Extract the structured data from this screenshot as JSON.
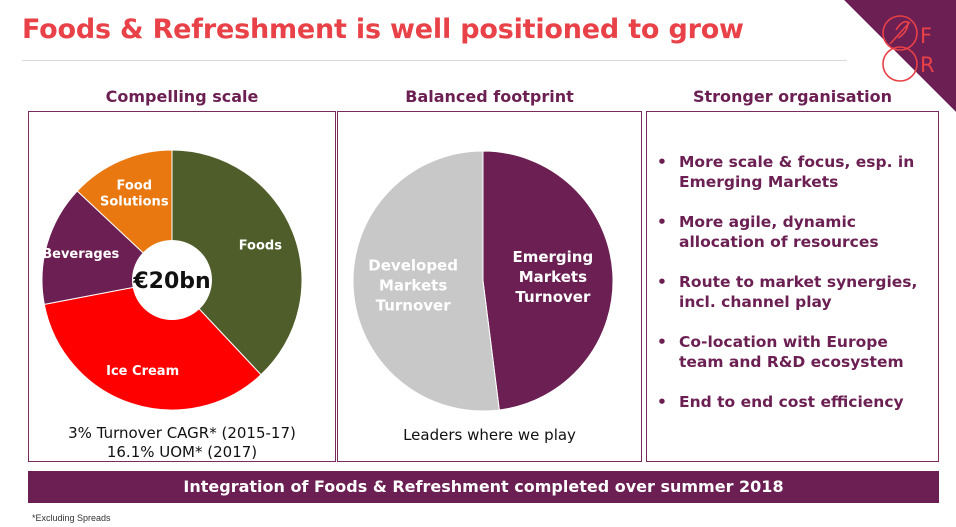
{
  "title": "Foods & Refreshment is well positioned to grow",
  "logo": {
    "letters": [
      "F",
      "R"
    ],
    "colors": {
      "triangle": "#6b1f52",
      "mark": "#e84147"
    }
  },
  "columns": {
    "scale": {
      "heading": "Compelling scale",
      "center_label": "€20bn",
      "captions": [
        "3% Turnover CAGR* (2015-17)",
        "16.1% UOM* (2017)"
      ]
    },
    "footprint": {
      "heading": "Balanced footprint",
      "caption": "Leaders where we play"
    },
    "organisation": {
      "heading": "Stronger organisation",
      "bullets": [
        [
          "More scale & focus, esp. in",
          "Emerging Markets"
        ],
        [
          "More agile, dynamic",
          "allocation of resources"
        ],
        [
          "Route to market synergies,",
          "incl. channel play"
        ],
        [
          "Co-location with Europe",
          "team and R&D ecosystem"
        ],
        [
          "End to end cost efficiency"
        ]
      ]
    }
  },
  "chart_data": [
    {
      "type": "pie",
      "style": "donut",
      "title": "",
      "center_label": "€20bn",
      "slices": [
        {
          "label": "Foods",
          "lines": [
            "Foods"
          ],
          "value": 38,
          "color": "#4f5d2a"
        },
        {
          "label": "Ice Cream",
          "lines": [
            "Ice Cream"
          ],
          "value": 34,
          "color": "#ff0000"
        },
        {
          "label": "Beverages",
          "lines": [
            "Beverages"
          ],
          "value": 15,
          "color": "#6b1f52"
        },
        {
          "label": "Food Solutions",
          "lines": [
            "Food",
            "Solutions"
          ],
          "value": 13,
          "color": "#e8780f"
        }
      ]
    },
    {
      "type": "pie",
      "title": "",
      "slices": [
        {
          "label": "Emerging Markets Turnover",
          "lines": [
            "Emerging",
            "Markets",
            "Turnover"
          ],
          "value": 48,
          "color": "#6b1f52"
        },
        {
          "label": "Developed Markets Turnover",
          "lines": [
            "Developed",
            "Markets",
            "Turnover"
          ],
          "value": 52,
          "color": "#c8c8c8"
        }
      ]
    }
  ],
  "banner": "Integration of Foods & Refreshment completed over summer 2018",
  "footnote": "*Excluding Spreads"
}
